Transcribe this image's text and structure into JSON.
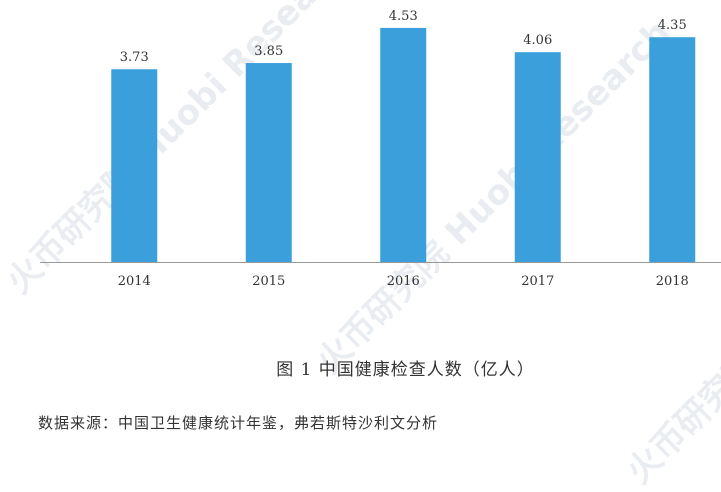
{
  "chart_data": {
    "type": "bar",
    "categories": [
      "2014",
      "2015",
      "2016",
      "2017",
      "2018"
    ],
    "values": [
      3.73,
      3.85,
      4.53,
      4.06,
      4.35
    ],
    "data_labels": [
      "3.73",
      "3.85",
      "4.53",
      "4.06",
      "4.35"
    ],
    "title": "图 1   中国健康检查人数（亿人）",
    "xlabel": "",
    "ylabel": "",
    "ylim": [
      0,
      5.07
    ],
    "grid": false,
    "bar_color": "#3A9FDB"
  },
  "source": "数据来源：中国卫生健康统计年鉴，弗若斯特沙利文分析",
  "watermark": "火币研究院 Huobi Research"
}
